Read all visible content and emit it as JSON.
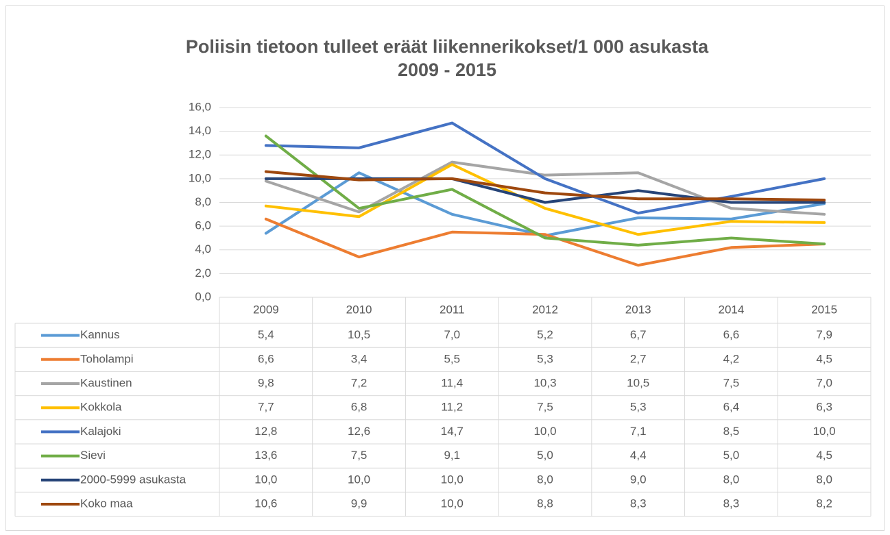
{
  "chart_data": {
    "type": "line",
    "title": "Poliisin tietoon tulleet eräät liikennerikokset/1 000 asukasta",
    "subtitle": "2009 - 2015",
    "categories": [
      "2009",
      "2010",
      "2011",
      "2012",
      "2013",
      "2014",
      "2015"
    ],
    "ylim": [
      0,
      16
    ],
    "yticks": [
      {
        "value": 0,
        "label": "0,0"
      },
      {
        "value": 2,
        "label": "2,0"
      },
      {
        "value": 4,
        "label": "4,0"
      },
      {
        "value": 6,
        "label": "6,0"
      },
      {
        "value": 8,
        "label": "8,0"
      },
      {
        "value": 10,
        "label": "10,0"
      },
      {
        "value": 12,
        "label": "12,0"
      },
      {
        "value": 14,
        "label": "14,0"
      },
      {
        "value": 16,
        "label": "16,0"
      }
    ],
    "grid": true,
    "series": [
      {
        "name": "Kannus",
        "color": "#5b9bd5",
        "values": [
          5.4,
          10.5,
          7.0,
          5.2,
          6.7,
          6.6,
          7.9
        ],
        "value_labels": [
          "5,4",
          "10,5",
          "7,0",
          "5,2",
          "6,7",
          "6,6",
          "7,9"
        ]
      },
      {
        "name": "Toholampi",
        "color": "#ed7d31",
        "values": [
          6.6,
          3.4,
          5.5,
          5.3,
          2.7,
          4.2,
          4.5
        ],
        "value_labels": [
          "6,6",
          "3,4",
          "5,5",
          "5,3",
          "2,7",
          "4,2",
          "4,5"
        ]
      },
      {
        "name": "Kaustinen",
        "color": "#a5a5a5",
        "values": [
          9.8,
          7.2,
          11.4,
          10.3,
          10.5,
          7.5,
          7.0
        ],
        "value_labels": [
          "9,8",
          "7,2",
          "11,4",
          "10,3",
          "10,5",
          "7,5",
          "7,0"
        ]
      },
      {
        "name": "Kokkola",
        "color": "#ffc000",
        "values": [
          7.7,
          6.8,
          11.2,
          7.5,
          5.3,
          6.4,
          6.3
        ],
        "value_labels": [
          "7,7",
          "6,8",
          "11,2",
          "7,5",
          "5,3",
          "6,4",
          "6,3"
        ]
      },
      {
        "name": "Kalajoki",
        "color": "#4472c4",
        "values": [
          12.8,
          12.6,
          14.7,
          10.0,
          7.1,
          8.5,
          10.0
        ],
        "value_labels": [
          "12,8",
          "12,6",
          "14,7",
          "10,0",
          "7,1",
          "8,5",
          "10,0"
        ]
      },
      {
        "name": "Sievi",
        "color": "#70ad47",
        "values": [
          13.6,
          7.5,
          9.1,
          5.0,
          4.4,
          5.0,
          4.5
        ],
        "value_labels": [
          "13,6",
          "7,5",
          "9,1",
          "5,0",
          "4,4",
          "5,0",
          "4,5"
        ]
      },
      {
        "name": "2000-5999 asukasta",
        "color": "#264478",
        "values": [
          10.0,
          10.0,
          10.0,
          8.0,
          9.0,
          8.0,
          8.0
        ],
        "value_labels": [
          "10,0",
          "10,0",
          "10,0",
          "8,0",
          "9,0",
          "8,0",
          "8,0"
        ]
      },
      {
        "name": "Koko maa",
        "color": "#9e480e",
        "values": [
          10.6,
          9.9,
          10.0,
          8.8,
          8.3,
          8.3,
          8.2
        ],
        "value_labels": [
          "10,6",
          "9,9",
          "10,0",
          "8,8",
          "8,3",
          "8,3",
          "8,2"
        ]
      }
    ]
  }
}
